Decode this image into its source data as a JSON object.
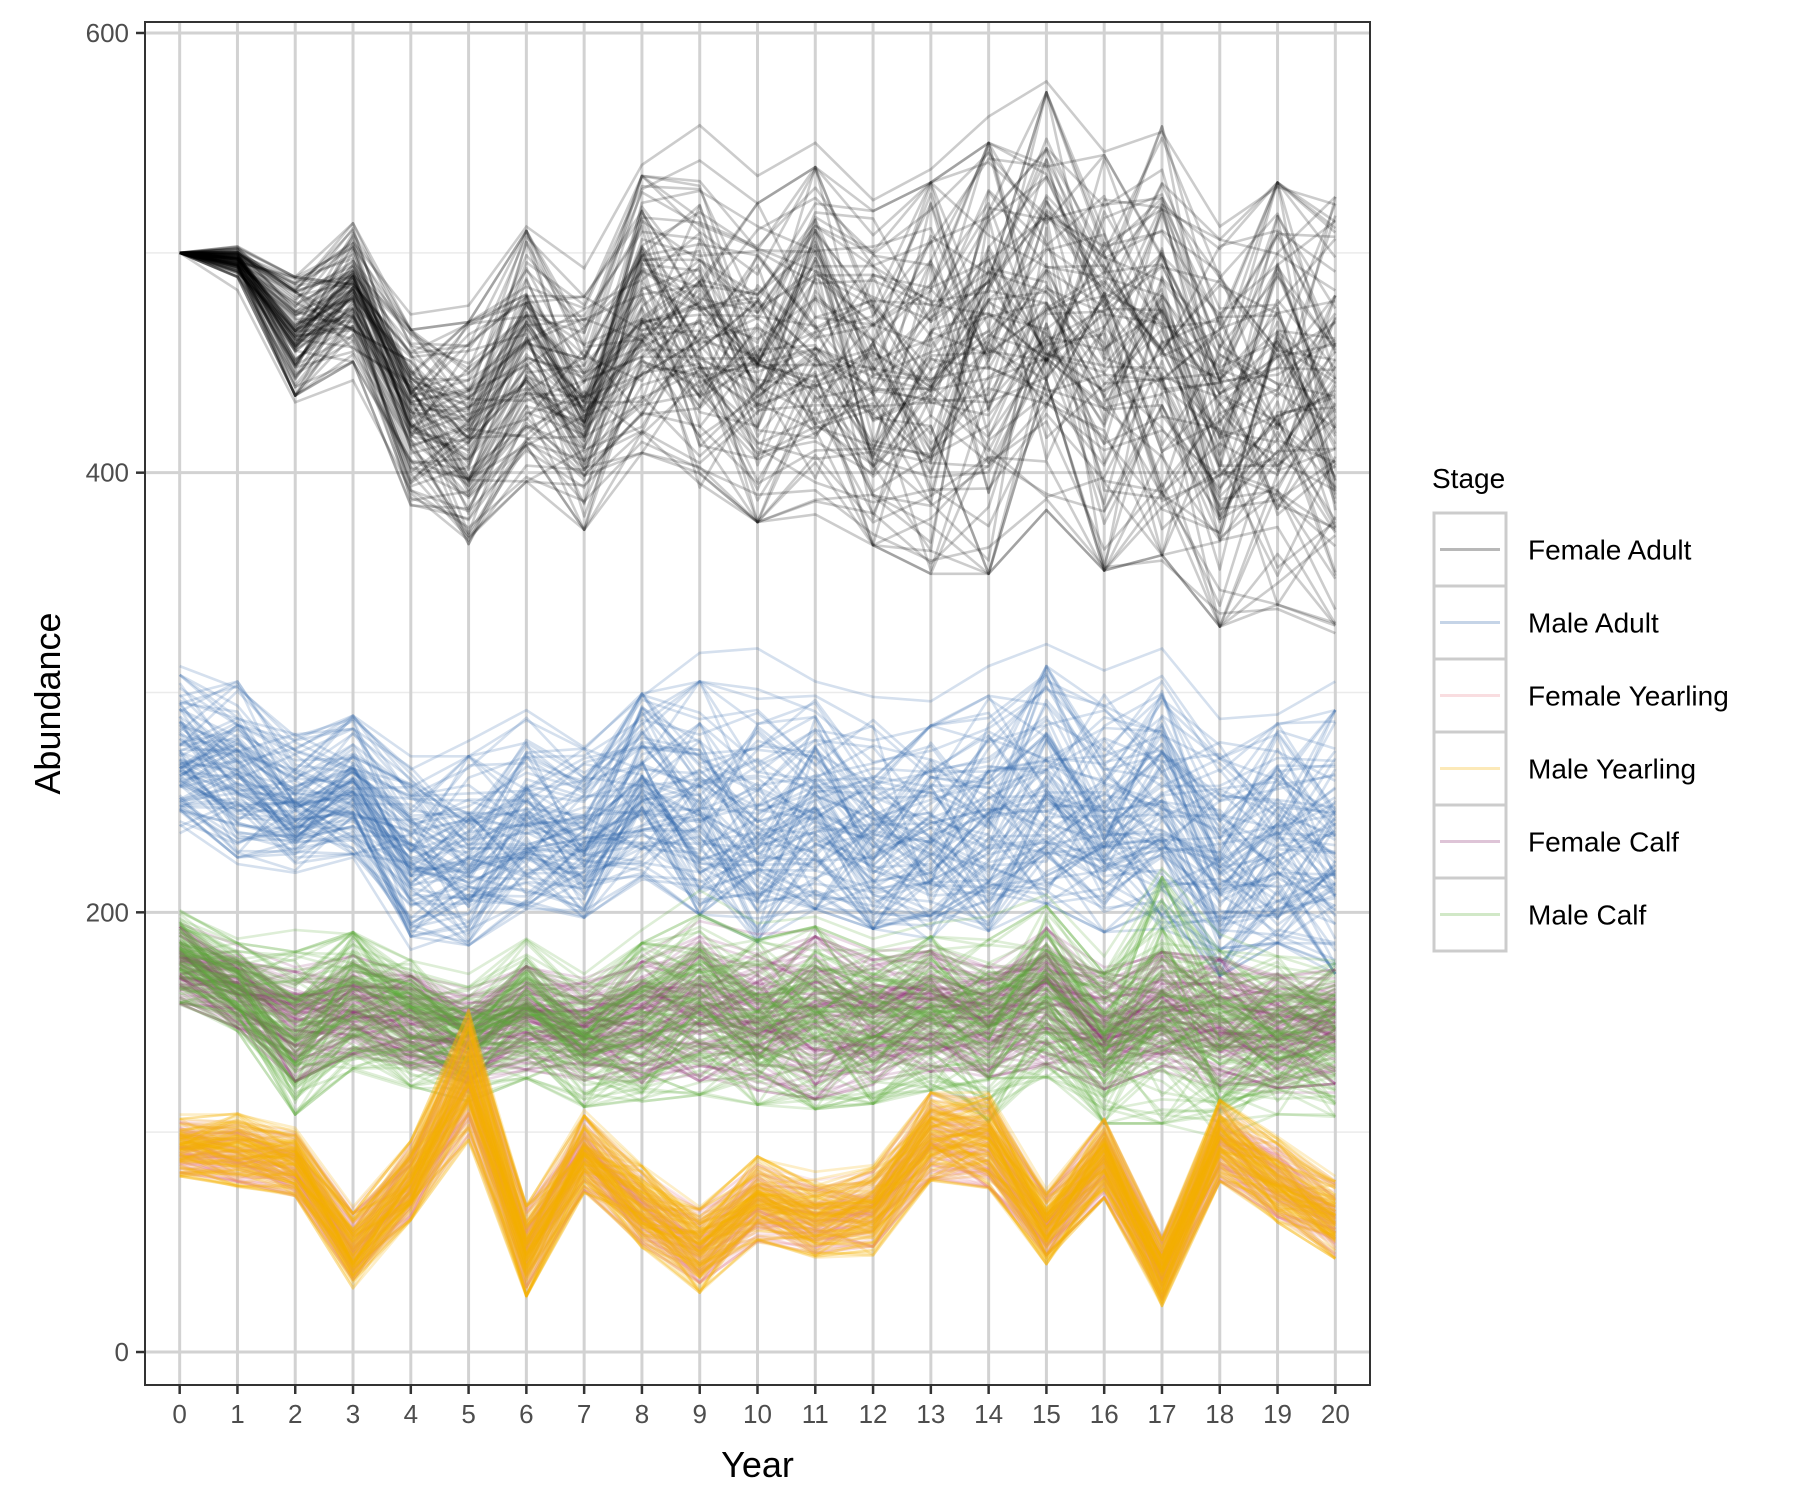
{
  "chart_data": {
    "type": "line",
    "xlabel": "Year",
    "ylabel": "Abundance",
    "x": [
      0,
      1,
      2,
      3,
      4,
      5,
      6,
      7,
      8,
      9,
      10,
      11,
      12,
      13,
      14,
      15,
      16,
      17,
      18,
      19,
      20
    ],
    "xlim": [
      -0.6,
      20.6
    ],
    "ylim": [
      -15,
      605
    ],
    "y_ticks": [
      0,
      200,
      400,
      600
    ],
    "grid": true,
    "legend": {
      "title": "Stage",
      "position": "right",
      "entries": [
        "Female Adult",
        "Male Adult",
        "Female Yearling",
        "Male Yearling",
        "Female Calf",
        "Male Calf"
      ]
    },
    "series": [
      {
        "name": "Female Adult",
        "color": "#000000",
        "mean": [
          500,
          496,
          462,
          482,
          425,
          418,
          453,
          427,
          472,
          464,
          450,
          460,
          443,
          443,
          452,
          478,
          450,
          460,
          418,
          436,
          428
        ],
        "min": [
          500,
          483,
          432,
          442,
          392,
          375,
          398,
          387,
          414,
          402,
          390,
          392,
          372,
          360,
          366,
          388,
          357,
          360,
          336,
          338,
          327
        ],
        "max": [
          500,
          497,
          486,
          505,
          472,
          476,
          512,
          493,
          540,
          558,
          535,
          550,
          524,
          538,
          562,
          578,
          546,
          555,
          512,
          530,
          522
        ],
        "runs": 100
      },
      {
        "name": "Male Adult",
        "color": "#2f63aa",
        "mean": [
          272,
          265,
          250,
          258,
          230,
          228,
          245,
          236,
          258,
          252,
          244,
          250,
          240,
          236,
          245,
          258,
          245,
          250,
          226,
          236,
          232
        ],
        "min": [
          240,
          222,
          218,
          225,
          183,
          192,
          205,
          198,
          215,
          212,
          205,
          208,
          203,
          198,
          205,
          214,
          202,
          205,
          178,
          190,
          185
        ],
        "max": [
          312,
          302,
          280,
          288,
          265,
          278,
          292,
          275,
          298,
          318,
          320,
          305,
          298,
          296,
          312,
          322,
          310,
          320,
          288,
          290,
          305
        ],
        "runs": 100
      },
      {
        "name": "Female Yearling",
        "color": "#e8848f",
        "mean": [
          93,
          91,
          85,
          48,
          78,
          125,
          48,
          90,
          65,
          48,
          68,
          60,
          65,
          98,
          95,
          58,
          88,
          38,
          95,
          78,
          60
        ],
        "min": [
          82,
          78,
          72,
          35,
          62,
          98,
          28,
          75,
          50,
          32,
          50,
          48,
          48,
          80,
          75,
          44,
          70,
          24,
          78,
          62,
          45
        ],
        "max": [
          105,
          105,
          100,
          65,
          95,
          150,
          65,
          108,
          82,
          65,
          85,
          78,
          82,
          118,
          115,
          72,
          105,
          52,
          112,
          95,
          78
        ],
        "runs": 100
      },
      {
        "name": "Male Yearling",
        "color": "#f5b000",
        "mean": [
          93,
          92,
          86,
          46,
          78,
          126,
          46,
          90,
          66,
          46,
          70,
          60,
          64,
          98,
          96,
          56,
          88,
          36,
          96,
          78,
          60
        ],
        "min": [
          82,
          75,
          72,
          32,
          60,
          96,
          25,
          75,
          48,
          28,
          50,
          45,
          45,
          78,
          75,
          42,
          70,
          22,
          78,
          60,
          45
        ],
        "max": [
          108,
          108,
          102,
          66,
          96,
          155,
          66,
          110,
          85,
          66,
          88,
          82,
          85,
          118,
          118,
          74,
          106,
          52,
          115,
          98,
          80
        ],
        "runs": 100
      },
      {
        "name": "Female Calf",
        "color": "#8a2a6e",
        "mean": [
          176,
          165,
          148,
          158,
          150,
          142,
          152,
          146,
          150,
          156,
          150,
          152,
          150,
          155,
          150,
          162,
          146,
          156,
          150,
          146,
          148
        ],
        "min": [
          160,
          150,
          125,
          135,
          130,
          125,
          128,
          125,
          125,
          130,
          128,
          118,
          125,
          130,
          125,
          130,
          122,
          128,
          120,
          118,
          118
        ],
        "max": [
          195,
          185,
          175,
          180,
          172,
          165,
          175,
          170,
          180,
          196,
          190,
          192,
          182,
          185,
          175,
          192,
          175,
          180,
          178,
          170,
          170
        ],
        "runs": 100
      },
      {
        "name": "Male Calf",
        "color": "#5aab37",
        "mean": [
          180,
          166,
          145,
          160,
          150,
          140,
          156,
          140,
          150,
          158,
          150,
          152,
          148,
          154,
          146,
          164,
          138,
          160,
          140,
          144,
          142
        ],
        "min": [
          158,
          148,
          118,
          128,
          120,
          120,
          125,
          115,
          120,
          128,
          120,
          115,
          118,
          125,
          115,
          130,
          112,
          108,
          105,
          108,
          108
        ],
        "max": [
          200,
          188,
          192,
          190,
          178,
          172,
          188,
          172,
          192,
          210,
          195,
          198,
          188,
          195,
          198,
          208,
          180,
          220,
          190,
          180,
          178
        ],
        "runs": 100
      }
    ]
  }
}
